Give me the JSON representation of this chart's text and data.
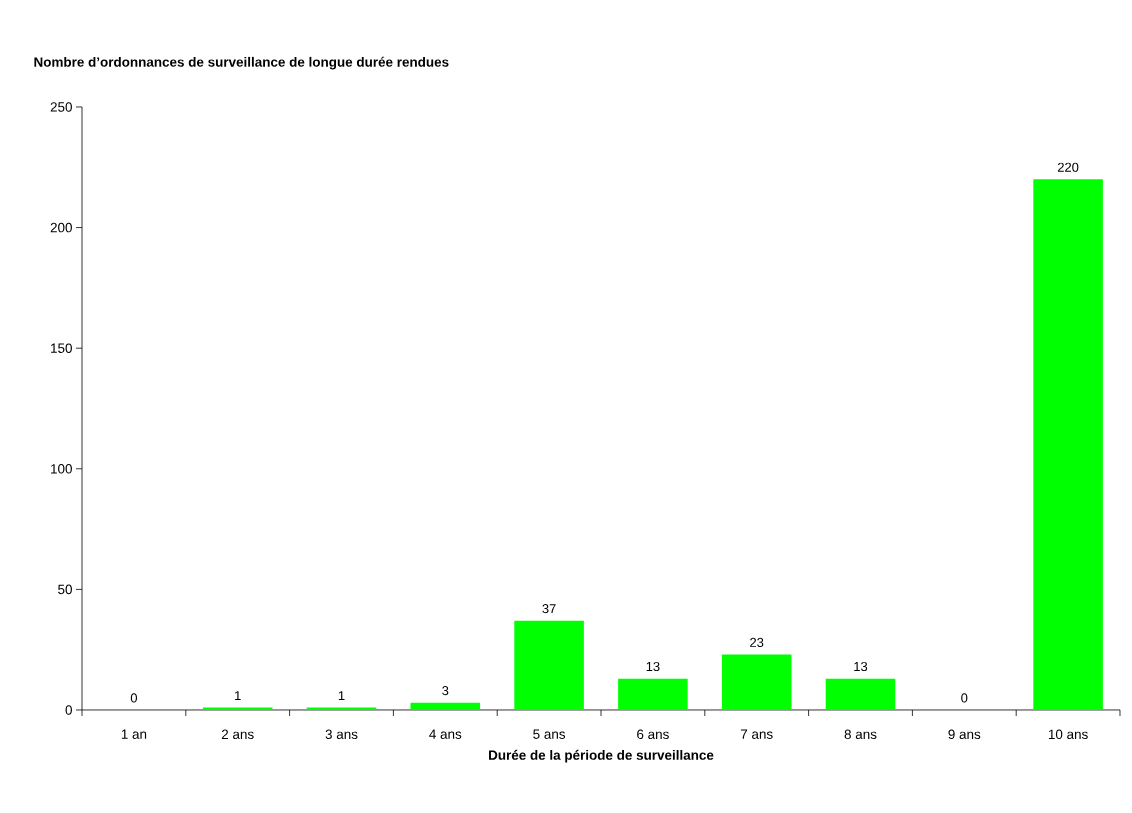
{
  "chart_data": {
    "type": "bar",
    "title": "Nombre d’ordonnances de surveillance de longue durée rendues",
    "xlabel": "Durée de la période de surveillance",
    "categories": [
      "1 an",
      "2 ans",
      "3 ans",
      "4 ans",
      "5 ans",
      "6 ans",
      "7 ans",
      "8 ans",
      "9 ans",
      "10 ans"
    ],
    "values": [
      0,
      1,
      1,
      3,
      37,
      13,
      23,
      13,
      0,
      220
    ],
    "color": "#00ff00",
    "ylim": [
      0,
      250
    ],
    "yticks": [
      0,
      50,
      100,
      150,
      200,
      250
    ],
    "data_labels": true,
    "grid": false
  }
}
